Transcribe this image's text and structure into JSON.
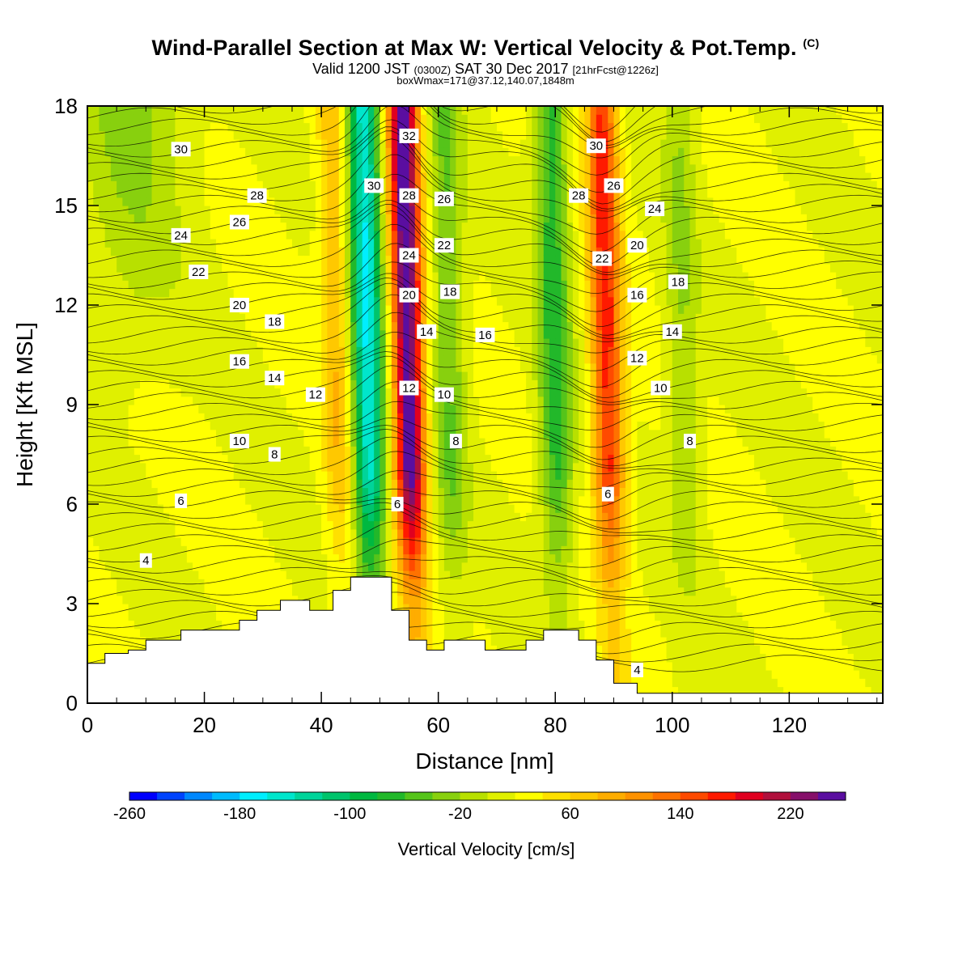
{
  "header": {
    "title": "Wind-Parallel Section at Max W: Vertical Velocity & Pot.Temp.",
    "title_mark": "(C)",
    "valid_prefix": "Valid 1200 JST",
    "valid_utc": "(0300Z)",
    "valid_date": "SAT 30 Dec 2017",
    "fcst": "[21hrFcst@1226z]",
    "box_info": "boxWmax=171@37.12,140.07,1848m"
  },
  "chart_data": {
    "type": "heatmap",
    "xlabel": "Distance [nm]",
    "ylabel": "Height [Kft MSL]",
    "xlim": [
      0,
      136
    ],
    "ylim": [
      0,
      18
    ],
    "x_ticks": [
      0,
      20,
      40,
      60,
      80,
      100,
      120
    ],
    "y_ticks": [
      0,
      3,
      6,
      9,
      12,
      15,
      18
    ],
    "colorbar": {
      "label": "Vertical Velocity [cm/s]",
      "min": -260,
      "max": 260,
      "step": 20,
      "tick_labels": [
        -260,
        -180,
        -100,
        -20,
        60,
        140,
        220
      ],
      "colors": [
        "#0000ff",
        "#0044ff",
        "#0088ff",
        "#00bbff",
        "#00eeff",
        "#00e6cc",
        "#00d49a",
        "#00c46c",
        "#00b840",
        "#22b82a",
        "#55c41a",
        "#88d00e",
        "#b8e000",
        "#e0f000",
        "#ffff00",
        "#ffe000",
        "#ffc800",
        "#ffad00",
        "#ff9200",
        "#ff7200",
        "#ff4a00",
        "#ff1a00",
        "#e00020",
        "#b0103c",
        "#86106a",
        "#5a0ea0"
      ]
    },
    "updraft_bands": [
      {
        "x_center": 55,
        "peak_w": 240
      },
      {
        "x_center": 89,
        "peak_w": 150
      },
      {
        "x_center": 43,
        "peak_w": 60
      }
    ],
    "downdraft_bands": [
      {
        "x_center": 48,
        "peak_w": -180
      },
      {
        "x_center": 80,
        "peak_w": -90
      },
      {
        "x_center": 62,
        "peak_w": -60
      },
      {
        "x_center": 102,
        "peak_w": -40
      }
    ],
    "terrain": {
      "x": [
        0,
        3,
        3,
        7,
        7,
        10,
        10,
        16,
        16,
        26,
        26,
        29,
        29,
        33,
        33,
        38,
        38,
        42,
        42,
        45,
        45,
        52,
        52,
        55,
        55,
        58,
        58,
        61,
        61,
        68,
        68,
        75,
        75,
        78,
        78,
        84,
        84,
        87,
        87,
        90,
        90,
        94,
        94,
        136
      ],
      "y": [
        1.2,
        1.2,
        1.5,
        1.5,
        1.6,
        1.6,
        1.9,
        1.9,
        2.2,
        2.2,
        2.5,
        2.5,
        2.8,
        2.8,
        3.1,
        3.1,
        2.8,
        2.8,
        3.4,
        3.4,
        3.8,
        3.8,
        2.8,
        2.8,
        1.9,
        1.9,
        1.6,
        1.6,
        1.9,
        1.9,
        1.6,
        1.6,
        1.9,
        1.9,
        2.2,
        2.2,
        1.9,
        1.9,
        1.3,
        1.3,
        0.6,
        0.6,
        0.3,
        0.3
      ]
    },
    "contour_labels": [
      {
        "text": "30",
        "x": 16,
        "y": 16.7
      },
      {
        "text": "28",
        "x": 29,
        "y": 15.3
      },
      {
        "text": "26",
        "x": 26,
        "y": 14.5
      },
      {
        "text": "24",
        "x": 16,
        "y": 14.1
      },
      {
        "text": "22",
        "x": 19,
        "y": 13.0
      },
      {
        "text": "20",
        "x": 26,
        "y": 12.0
      },
      {
        "text": "18",
        "x": 32,
        "y": 11.5
      },
      {
        "text": "16",
        "x": 26,
        "y": 10.3
      },
      {
        "text": "14",
        "x": 32,
        "y": 9.8
      },
      {
        "text": "12",
        "x": 39,
        "y": 9.3
      },
      {
        "text": "10",
        "x": 26,
        "y": 7.9
      },
      {
        "text": "8",
        "x": 32,
        "y": 7.5
      },
      {
        "text": "6",
        "x": 16,
        "y": 6.1
      },
      {
        "text": "4",
        "x": 10,
        "y": 4.3
      },
      {
        "text": "30",
        "x": 49,
        "y": 15.6
      },
      {
        "text": "32",
        "x": 55,
        "y": 17.1
      },
      {
        "text": "28",
        "x": 55,
        "y": 15.3
      },
      {
        "text": "24",
        "x": 55,
        "y": 13.5
      },
      {
        "text": "20",
        "x": 55,
        "y": 12.3
      },
      {
        "text": "12",
        "x": 55,
        "y": 9.5
      },
      {
        "text": "6",
        "x": 53,
        "y": 6.0
      },
      {
        "text": "26",
        "x": 61,
        "y": 15.2
      },
      {
        "text": "22",
        "x": 61,
        "y": 13.8
      },
      {
        "text": "18",
        "x": 62,
        "y": 12.4
      },
      {
        "text": "14",
        "x": 58,
        "y": 11.2
      },
      {
        "text": "10",
        "x": 61,
        "y": 9.3
      },
      {
        "text": "8",
        "x": 63,
        "y": 7.9
      },
      {
        "text": "16",
        "x": 68,
        "y": 11.1
      },
      {
        "text": "30",
        "x": 87,
        "y": 16.8
      },
      {
        "text": "28",
        "x": 84,
        "y": 15.3
      },
      {
        "text": "26",
        "x": 90,
        "y": 15.6
      },
      {
        "text": "24",
        "x": 97,
        "y": 14.9
      },
      {
        "text": "22",
        "x": 88,
        "y": 13.4
      },
      {
        "text": "20",
        "x": 94,
        "y": 13.8
      },
      {
        "text": "18",
        "x": 101,
        "y": 12.7
      },
      {
        "text": "16",
        "x": 94,
        "y": 12.3
      },
      {
        "text": "14",
        "x": 100,
        "y": 11.2
      },
      {
        "text": "12",
        "x": 94,
        "y": 10.4
      },
      {
        "text": "10",
        "x": 98,
        "y": 9.5
      },
      {
        "text": "8",
        "x": 103,
        "y": 7.9
      },
      {
        "text": "6",
        "x": 89,
        "y": 6.3
      },
      {
        "text": "4",
        "x": 94,
        "y": 1.0
      }
    ]
  }
}
